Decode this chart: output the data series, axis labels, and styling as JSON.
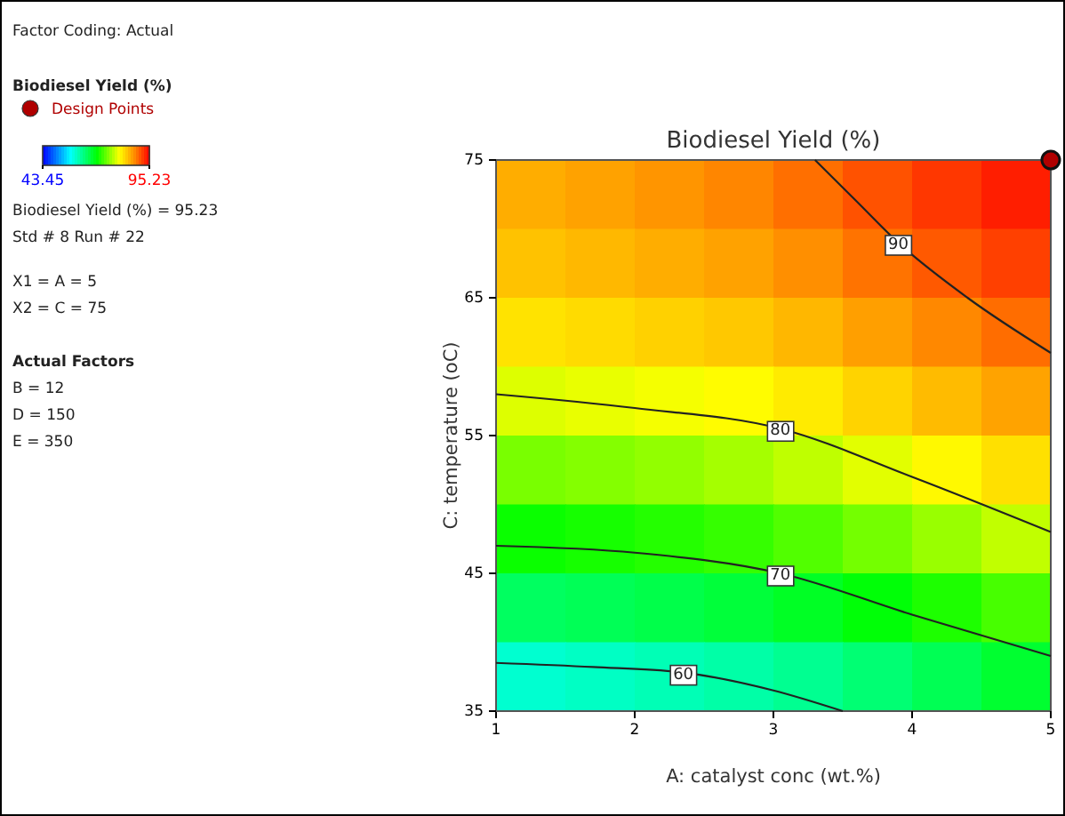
{
  "chart_data": {
    "type": "heatmap",
    "title": "Biodiesel Yield (%)",
    "xlabel": "A: catalyst conc (wt.%)",
    "ylabel": "C: temperature (oC)",
    "legend_title": "Biodiesel Yield (%)",
    "legend": "left",
    "xlim": [
      1,
      5
    ],
    "xticks": [
      1,
      2,
      3,
      4,
      5
    ],
    "ylim": [
      35,
      75
    ],
    "yticks": [
      35,
      45,
      55,
      65,
      75
    ],
    "clim": [
      43.45,
      95.23
    ],
    "cticks": [
      43.45,
      95.23
    ],
    "cells": [
      [
        85.9,
        86.6,
        87.4,
        88.3,
        89.5,
        91.0,
        92.4,
        93.7
      ],
      [
        84.6,
        85.2,
        85.9,
        86.6,
        87.8,
        89.3,
        90.6,
        91.9
      ],
      [
        82.5,
        83.0,
        83.6,
        84.2,
        85.3,
        86.8,
        88.2,
        89.6
      ],
      [
        79.3,
        79.8,
        80.3,
        80.9,
        82.0,
        83.5,
        85.0,
        86.5
      ],
      [
        75.0,
        75.5,
        76.1,
        76.9,
        78.0,
        79.5,
        81.1,
        82.7
      ],
      [
        70.3,
        70.8,
        71.4,
        72.1,
        73.3,
        74.8,
        76.4,
        78.1
      ],
      [
        65.0,
        65.5,
        66.1,
        66.9,
        68.0,
        69.5,
        71.1,
        72.9
      ],
      [
        59.3,
        59.9,
        60.6,
        61.4,
        62.5,
        64.0,
        65.6,
        67.4
      ]
    ],
    "series": [
      {
        "type": "scatter",
        "name": "Design Points",
        "color": "#b00000",
        "x": [
          5
        ],
        "values": [
          75
        ]
      },
      {
        "type": "line",
        "name": "90",
        "color": "#222222",
        "x": [
          3.3,
          3.6,
          3.9,
          4.4,
          5
        ],
        "values": [
          75,
          72,
          69,
          65,
          61
        ]
      },
      {
        "type": "line",
        "name": "80",
        "color": "#222222",
        "x": [
          1,
          2,
          3.05,
          4,
          5
        ],
        "values": [
          58,
          57,
          55.5,
          52,
          48
        ]
      },
      {
        "type": "line",
        "name": "70",
        "color": "#222222",
        "x": [
          1,
          2,
          3.05,
          4,
          5
        ],
        "values": [
          47,
          46.5,
          45,
          42,
          39
        ]
      },
      {
        "type": "line",
        "name": "60",
        "color": "#222222",
        "x": [
          1,
          1.7,
          2.35,
          3,
          3.5
        ],
        "values": [
          38.5,
          38.2,
          37.8,
          36.5,
          35
        ]
      }
    ],
    "annotations": [
      "Factor Coding: Actual",
      "Biodiesel Yield (%) = 95.23",
      "Std # 8 Run # 22",
      "X1 = A = 5",
      "X2 = C = 75",
      "Actual Factors",
      "B = 12",
      "D = 150",
      "E = 350"
    ]
  }
}
